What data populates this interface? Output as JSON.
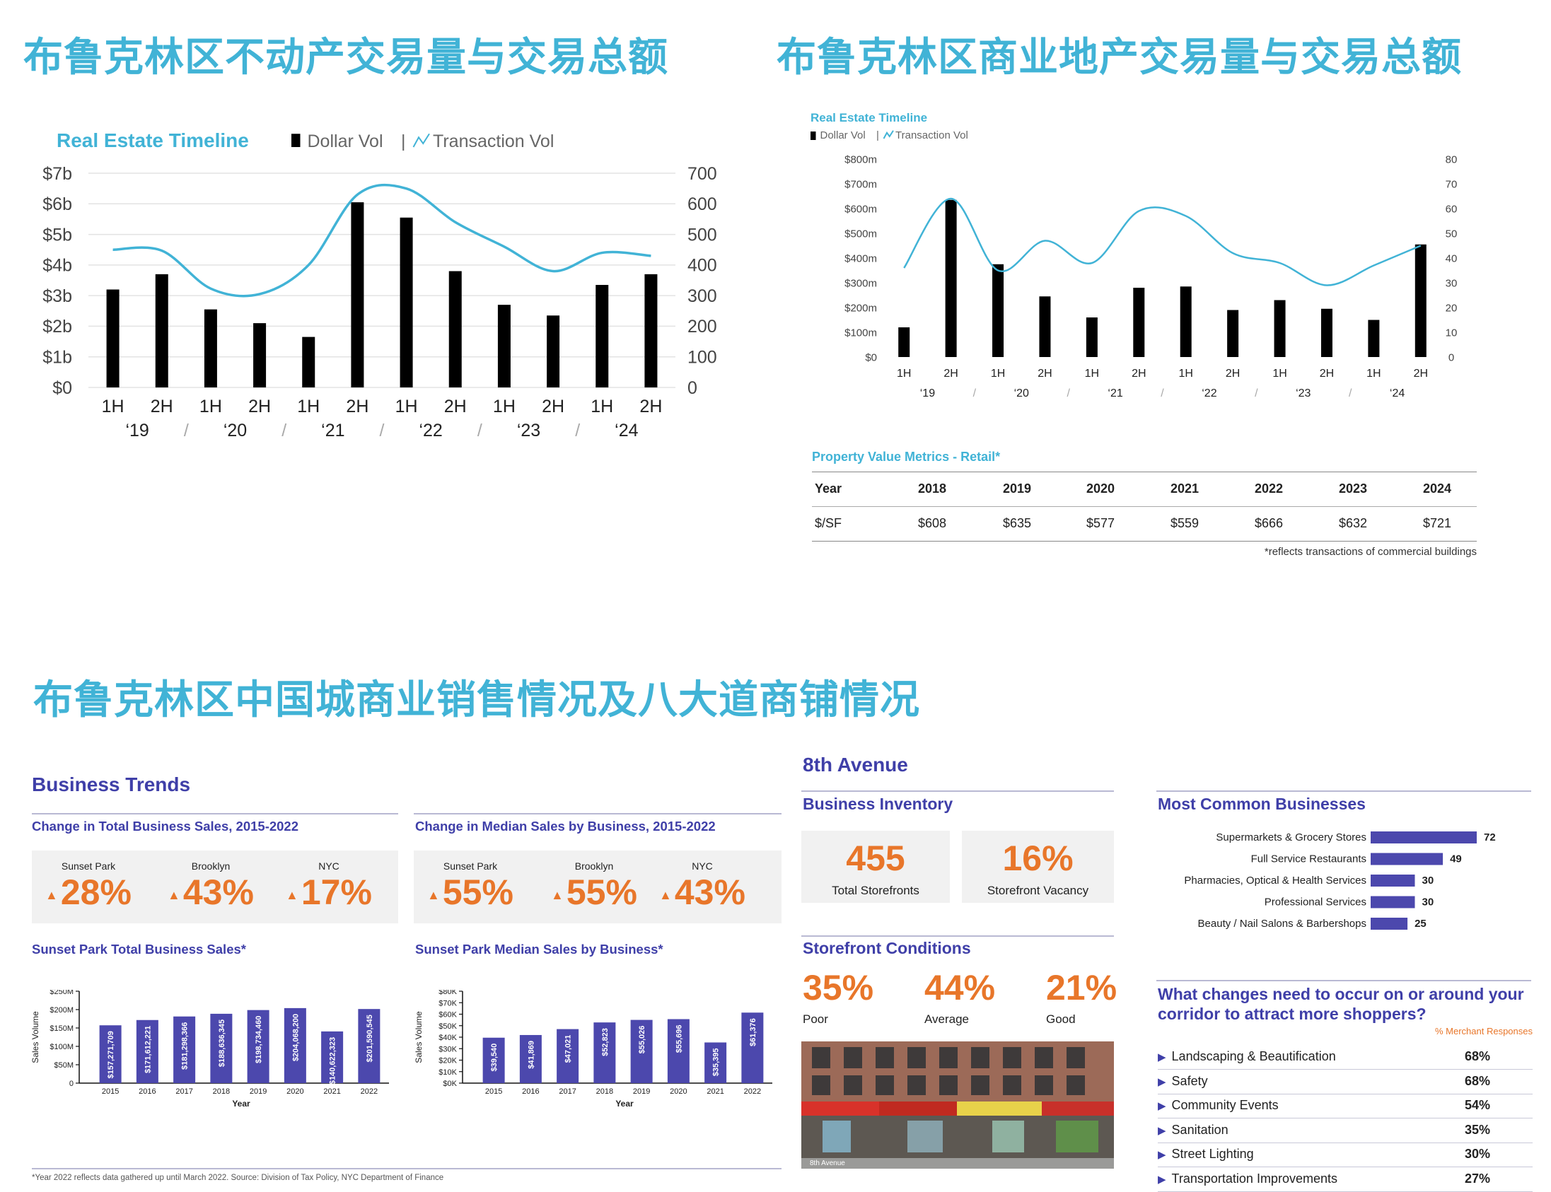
{
  "headings": {
    "top_left": "布鲁克林区不动产交易量与交易总额",
    "top_right": "布鲁克林区商业地产交易量与交易总额",
    "bottom": "布鲁克林区中国城商业销售情况及八大道商铺情况"
  },
  "colors": {
    "cyan": "#41b3d6",
    "bar": "#000000",
    "navy_bar": "#4c48ad",
    "orange": "#e8762a",
    "navy_text": "#3f3fa8"
  },
  "chart_data": [
    {
      "type": "bar",
      "id": "brooklyn-real-estate",
      "title": "Real Estate Timeline",
      "legend": [
        "Dollar Vol",
        "Transaction Vol"
      ],
      "categories": [
        "1H",
        "2H",
        "1H",
        "2H",
        "1H",
        "2H",
        "1H",
        "2H",
        "1H",
        "2H",
        "1H",
        "2H"
      ],
      "year_labels": [
        "‘19",
        "‘20",
        "‘21",
        "‘22",
        "‘23",
        "‘24"
      ],
      "y_ticks_left": [
        "$0",
        "$1b",
        "$2b",
        "$3b",
        "$4b",
        "$5b",
        "$6b",
        "$7b"
      ],
      "y_ticks_right": [
        "0",
        "100",
        "200",
        "300",
        "400",
        "500",
        "600",
        "700"
      ],
      "ylim_left": [
        0,
        7
      ],
      "ylim_right": [
        0,
        700
      ],
      "series": [
        {
          "name": "Dollar Vol",
          "unit": "$b",
          "values": [
            3.2,
            3.7,
            2.55,
            2.1,
            1.65,
            6.05,
            5.55,
            3.8,
            2.7,
            2.35,
            3.35,
            3.7
          ]
        },
        {
          "name": "Transaction Vol",
          "values": [
            450,
            447,
            323,
            305,
            400,
            630,
            650,
            540,
            460,
            380,
            440,
            430
          ]
        }
      ]
    },
    {
      "type": "bar",
      "id": "brooklyn-commercial",
      "title": "Real Estate Timeline",
      "legend": [
        "Dollar Vol",
        "Transaction Vol"
      ],
      "categories": [
        "1H",
        "2H",
        "1H",
        "2H",
        "1H",
        "2H",
        "1H",
        "2H",
        "1H",
        "2H",
        "1H",
        "2H"
      ],
      "year_labels": [
        "‘19",
        "‘20",
        "‘21",
        "‘22",
        "‘23",
        "‘24"
      ],
      "y_ticks_left": [
        "$0",
        "$100m",
        "$200m",
        "$300m",
        "$400m",
        "$500m",
        "$600m",
        "$700m",
        "$800m"
      ],
      "y_ticks_right": [
        "0",
        "10",
        "20",
        "30",
        "40",
        "50",
        "60",
        "70",
        "80"
      ],
      "ylim_left": [
        0,
        800
      ],
      "ylim_right": [
        0,
        80
      ],
      "series": [
        {
          "name": "Dollar Vol",
          "unit": "$m",
          "values": [
            120,
            635,
            375,
            245,
            160,
            280,
            285,
            190,
            230,
            195,
            150,
            455
          ]
        },
        {
          "name": "Transaction Vol",
          "values": [
            36,
            64,
            35,
            47,
            38,
            59,
            57,
            42,
            38,
            29,
            37,
            45
          ]
        }
      ]
    },
    {
      "type": "bar",
      "id": "sunset-park-total",
      "title": "Sunset Park Total Business Sales*",
      "categories": [
        "2015",
        "2016",
        "2017",
        "2018",
        "2019",
        "2020",
        "2021",
        "2022"
      ],
      "values": [
        157271709,
        171612221,
        181298366,
        188636345,
        198734460,
        204068200,
        140622323,
        201590545
      ],
      "value_labels": [
        "$157,271,709",
        "$171,612,221",
        "$181,298,366",
        "$188,636,345",
        "$198,734,460",
        "$204,068,200",
        "$140,622,323",
        "$201,590,545"
      ],
      "ylim": [
        0,
        250000000
      ],
      "y_ticks": [
        "0",
        "$50M",
        "$100M",
        "$150M",
        "$200M",
        "$250M"
      ],
      "xlabel": "Year",
      "ylabel": "Sales Volume"
    },
    {
      "type": "bar",
      "id": "sunset-park-median",
      "title": "Sunset Park Median Sales by Business*",
      "categories": [
        "2015",
        "2016",
        "2017",
        "2018",
        "2019",
        "2020",
        "2021",
        "2022"
      ],
      "values": [
        39540,
        41869,
        47021,
        52823,
        55026,
        55696,
        35395,
        61376
      ],
      "value_labels": [
        "$39,540",
        "$41,869",
        "$47,021",
        "$52,823",
        "$55,026",
        "$55,696",
        "$35,395",
        "$61,376"
      ],
      "ylim": [
        0,
        80000
      ],
      "y_ticks": [
        "$0K",
        "$10K",
        "$20K",
        "$30K",
        "$40K",
        "$50K",
        "$60K",
        "$70K",
        "$80K"
      ],
      "xlabel": "Year",
      "ylabel": "Sales Volume"
    },
    {
      "type": "bar",
      "id": "most-common-businesses",
      "title": "Most Common Businesses",
      "categories": [
        "Supermarkets & Grocery Stores",
        "Full Service Restaurants",
        "Pharmacies, Optical & Health Services",
        "Professional Services",
        "Beauty / Nail Salons & Barbershops"
      ],
      "values": [
        72,
        49,
        30,
        30,
        25
      ]
    }
  ],
  "property_table": {
    "title": "Property Value Metrics - Retail*",
    "header": [
      "Year",
      "2018",
      "2019",
      "2020",
      "2021",
      "2022",
      "2023",
      "2024"
    ],
    "row": [
      "$/SF",
      "$608",
      "$635",
      "$577",
      "$559",
      "$666",
      "$632",
      "$721"
    ],
    "footnote": "*reflects transactions of commercial buildings"
  },
  "business_trends": {
    "title": "Business Trends",
    "total_change_title": "Change in Total Business Sales, 2015-2022",
    "median_change_title": "Change in Median Sales by Business, 2015-2022",
    "total_change": [
      {
        "label": "Sunset Park",
        "value": "28%"
      },
      {
        "label": "Brooklyn",
        "value": "43%"
      },
      {
        "label": "NYC",
        "value": "17%"
      }
    ],
    "median_change": [
      {
        "label": "Sunset Park",
        "value": "55%"
      },
      {
        "label": "Brooklyn",
        "value": "55%"
      },
      {
        "label": "NYC",
        "value": "43%"
      }
    ],
    "arrow": "▲",
    "footnote": "*Year 2022 reflects data gathered up until March 2022. Source: Division of Tax Policy, NYC Department of Finance"
  },
  "eighth_avenue": {
    "title": "8th Avenue",
    "inventory_title": "Business Inventory",
    "inventory": [
      {
        "value": "455",
        "label": "Total Storefronts"
      },
      {
        "value": "16%",
        "label": "Storefront Vacancy"
      }
    ],
    "conditions_title": "Storefront Conditions",
    "conditions": [
      {
        "value": "35%",
        "label": "Poor"
      },
      {
        "value": "44%",
        "label": "Average"
      },
      {
        "value": "21%",
        "label": "Good"
      }
    ],
    "photo_caption": "8th Avenue"
  },
  "survey": {
    "question": "What changes need to occur on or around your corridor to attract more shoppers?",
    "column_header": "% Merchant Responses",
    "items": [
      {
        "label": "Landscaping & Beautification",
        "value": "68%"
      },
      {
        "label": "Safety",
        "value": "68%"
      },
      {
        "label": "Community Events",
        "value": "54%"
      },
      {
        "label": "Sanitation",
        "value": "35%"
      },
      {
        "label": "Street Lighting",
        "value": "30%"
      },
      {
        "label": "Transportation Improvements",
        "value": "27%"
      }
    ]
  }
}
